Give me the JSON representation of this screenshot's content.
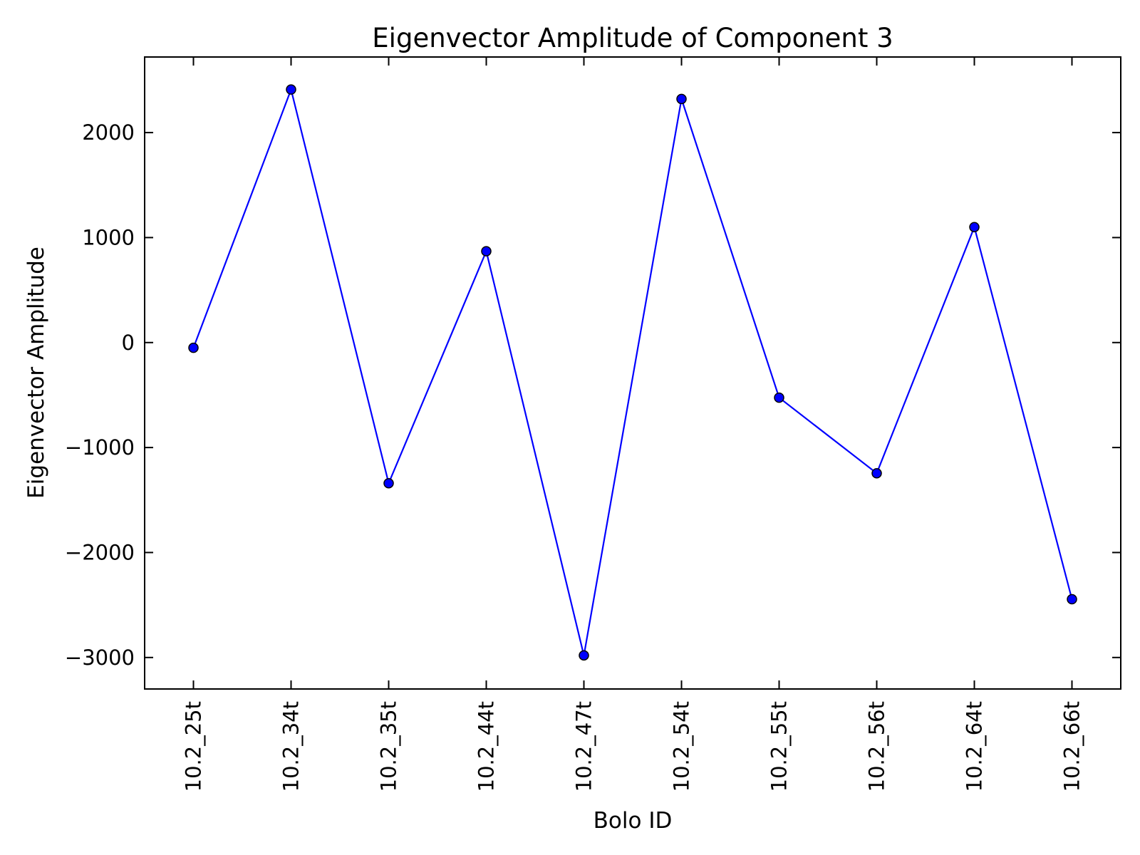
{
  "chart_data": {
    "type": "line",
    "title": "Eigenvector Amplitude of Component 3",
    "xlabel": "Bolo ID",
    "ylabel": "Eigenvector Amplitude",
    "categories": [
      "10.2_25t",
      "10.2_34t",
      "10.2_35t",
      "10.2_44t",
      "10.2_47t",
      "10.2_54t",
      "10.2_55t",
      "10.2_56t",
      "10.2_64t",
      "10.2_66t"
    ],
    "series": [
      {
        "values": [
          -50,
          2410,
          -1340,
          870,
          -2980,
          2320,
          -525,
          -1245,
          1100,
          -2445
        ],
        "color": "#0000ff",
        "marker": "circle"
      }
    ],
    "ylim": [
      -3300,
      2720
    ],
    "yticks": [
      -3000,
      -2000,
      -1000,
      0,
      1000,
      2000
    ],
    "ytick_labels": [
      "−3000",
      "−2000",
      "−1000",
      "0",
      "1000",
      "2000"
    ],
    "grid": false,
    "legend": "none"
  }
}
